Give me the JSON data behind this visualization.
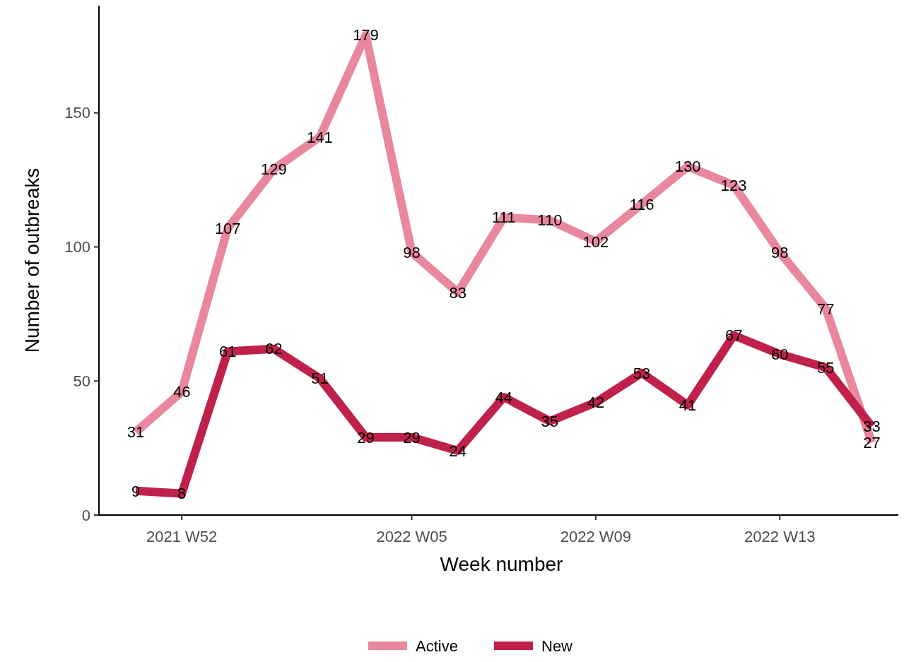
{
  "chart_data": {
    "type": "line",
    "xlabel": "Week number",
    "ylabel": "Number of outbreaks",
    "categories": [
      null,
      "2021 W52",
      null,
      null,
      null,
      null,
      "2022 W05",
      null,
      null,
      null,
      "2022 W09",
      null,
      null,
      null,
      "2022 W13",
      null,
      null
    ],
    "series": [
      {
        "name": "Active",
        "color": "#e8879e",
        "values": [
          31,
          46,
          107,
          129,
          141,
          179,
          98,
          83,
          111,
          110,
          102,
          116,
          130,
          123,
          98,
          77,
          27
        ]
      },
      {
        "name": "New",
        "color": "#c0214a",
        "values": [
          9,
          8,
          61,
          62,
          51,
          29,
          29,
          24,
          44,
          35,
          42,
          53,
          41,
          67,
          60,
          55,
          33
        ]
      }
    ],
    "ylim": [
      0,
      190
    ],
    "yticks": [
      0,
      50,
      100,
      150
    ],
    "data_labels": true,
    "legend": "bottom",
    "grid": false
  }
}
